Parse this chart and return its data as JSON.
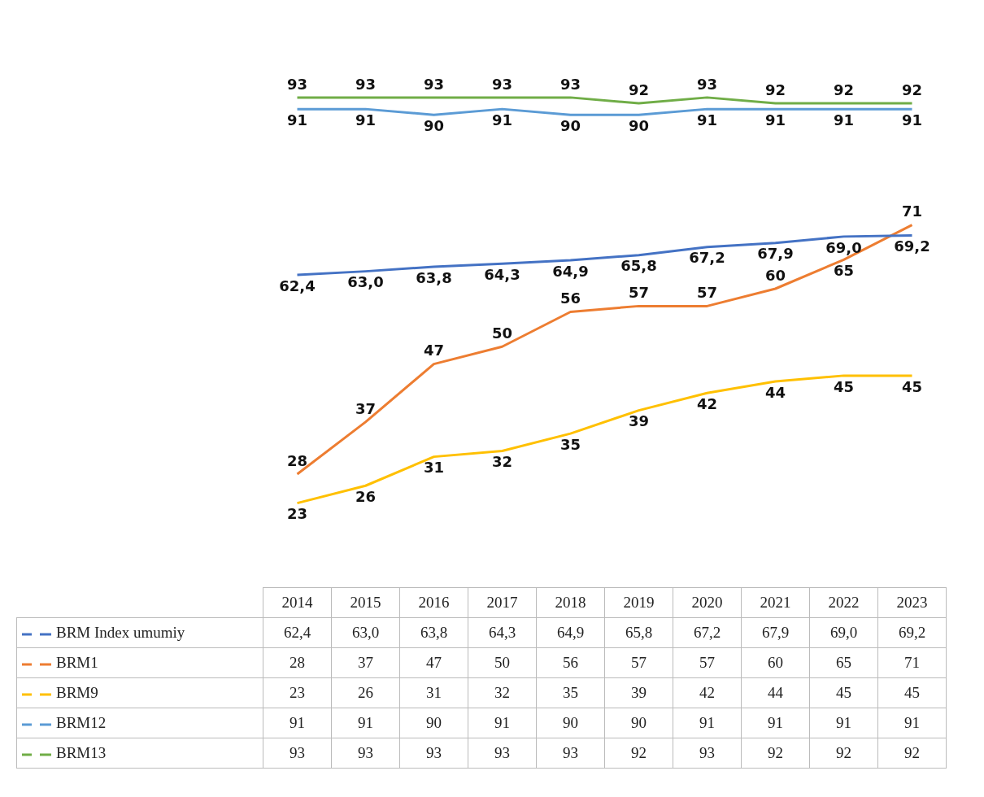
{
  "chart_data": {
    "type": "line",
    "categories": [
      "2014",
      "2015",
      "2016",
      "2017",
      "2018",
      "2019",
      "2020",
      "2021",
      "2022",
      "2023"
    ],
    "series": [
      {
        "name": "BRM Index umumiy",
        "color": "#4472c4",
        "values": [
          62.4,
          63.0,
          63.8,
          64.3,
          64.9,
          65.8,
          67.2,
          67.9,
          69.0,
          69.2
        ],
        "value_labels": [
          "62,4",
          "63,0",
          "63,8",
          "64,3",
          "64,9",
          "65,8",
          "67,2",
          "67,9",
          "69,0",
          "69,2"
        ]
      },
      {
        "name": "BRM1",
        "color": "#ed7d31",
        "values": [
          28,
          37,
          47,
          50,
          56,
          57,
          57,
          60,
          65,
          71
        ],
        "value_labels": [
          "28",
          "37",
          "47",
          "50",
          "56",
          "57",
          "57",
          "60",
          "65",
          "71"
        ]
      },
      {
        "name": "BRM9",
        "color": "#ffc000",
        "values": [
          23,
          26,
          31,
          32,
          35,
          39,
          42,
          44,
          45,
          45
        ],
        "value_labels": [
          "23",
          "26",
          "31",
          "32",
          "35",
          "39",
          "42",
          "44",
          "45",
          "45"
        ]
      },
      {
        "name": "BRM12",
        "color": "#5b9bd5",
        "values": [
          91,
          91,
          90,
          91,
          90,
          90,
          91,
          91,
          91,
          91
        ],
        "value_labels": [
          "91",
          "91",
          "90",
          "91",
          "90",
          "90",
          "91",
          "91",
          "91",
          "91"
        ]
      },
      {
        "name": "BRM13",
        "color": "#70ad47",
        "values": [
          93,
          93,
          93,
          93,
          93,
          92,
          93,
          92,
          92,
          92
        ],
        "value_labels": [
          "93",
          "93",
          "93",
          "93",
          "93",
          "92",
          "93",
          "92",
          "92",
          "92"
        ]
      }
    ],
    "legend": "bottom",
    "grid": false,
    "marker": "none",
    "line_style": "solid",
    "tick_labels": false
  }
}
